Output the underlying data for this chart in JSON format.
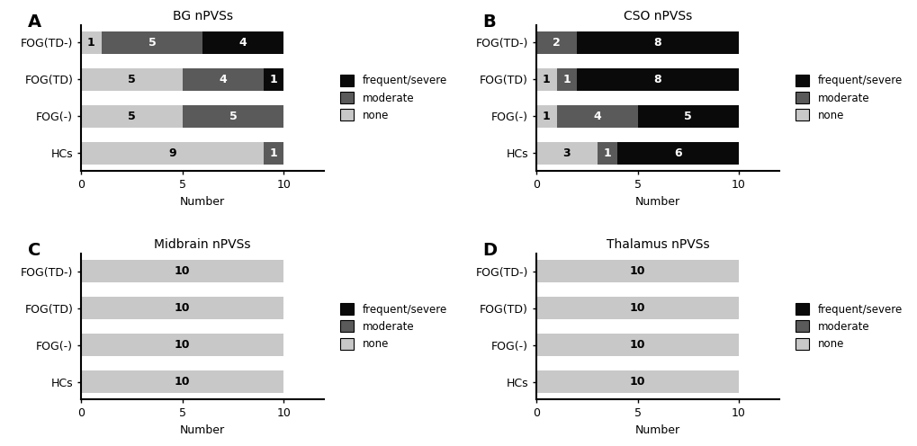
{
  "panels": [
    {
      "label": "A",
      "title": "BG nPVSs",
      "categories": [
        "HCs",
        "FOG(-)",
        "FOG(TD)",
        "FOG(TD-)"
      ],
      "none": [
        9,
        5,
        5,
        1
      ],
      "moderate": [
        1,
        5,
        4,
        5
      ],
      "frequent": [
        0,
        0,
        1,
        4
      ]
    },
    {
      "label": "B",
      "title": "CSO nPVSs",
      "categories": [
        "HCs",
        "FOG(-)",
        "FOG(TD)",
        "FOG(TD-)"
      ],
      "none": [
        3,
        1,
        1,
        0
      ],
      "moderate": [
        1,
        4,
        1,
        2
      ],
      "frequent": [
        6,
        5,
        8,
        8
      ]
    },
    {
      "label": "C",
      "title": "Midbrain nPVSs",
      "categories": [
        "HCs",
        "FOG(-)",
        "FOG(TD)",
        "FOG(TD-)"
      ],
      "none": [
        10,
        10,
        10,
        10
      ],
      "moderate": [
        0,
        0,
        0,
        0
      ],
      "frequent": [
        0,
        0,
        0,
        0
      ]
    },
    {
      "label": "D",
      "title": "Thalamus nPVSs",
      "categories": [
        "HCs",
        "FOG(-)",
        "FOG(TD)",
        "FOG(TD-)"
      ],
      "none": [
        10,
        10,
        10,
        10
      ],
      "moderate": [
        0,
        0,
        0,
        0
      ],
      "frequent": [
        0,
        0,
        0,
        0
      ]
    }
  ],
  "color_none": "#c8c8c8",
  "color_moderate": "#5a5a5a",
  "color_frequent": "#0a0a0a",
  "color_text_light": "#ffffff",
  "color_text_dark": "#000000",
  "xlim": [
    0,
    12
  ],
  "xticks": [
    0,
    5,
    10
  ],
  "xlabel": "Number",
  "bar_height": 0.6,
  "legend_labels": [
    "frequent/severe",
    "moderate",
    "none"
  ],
  "legend_colors": [
    "#0a0a0a",
    "#5a5a5a",
    "#c8c8c8"
  ]
}
